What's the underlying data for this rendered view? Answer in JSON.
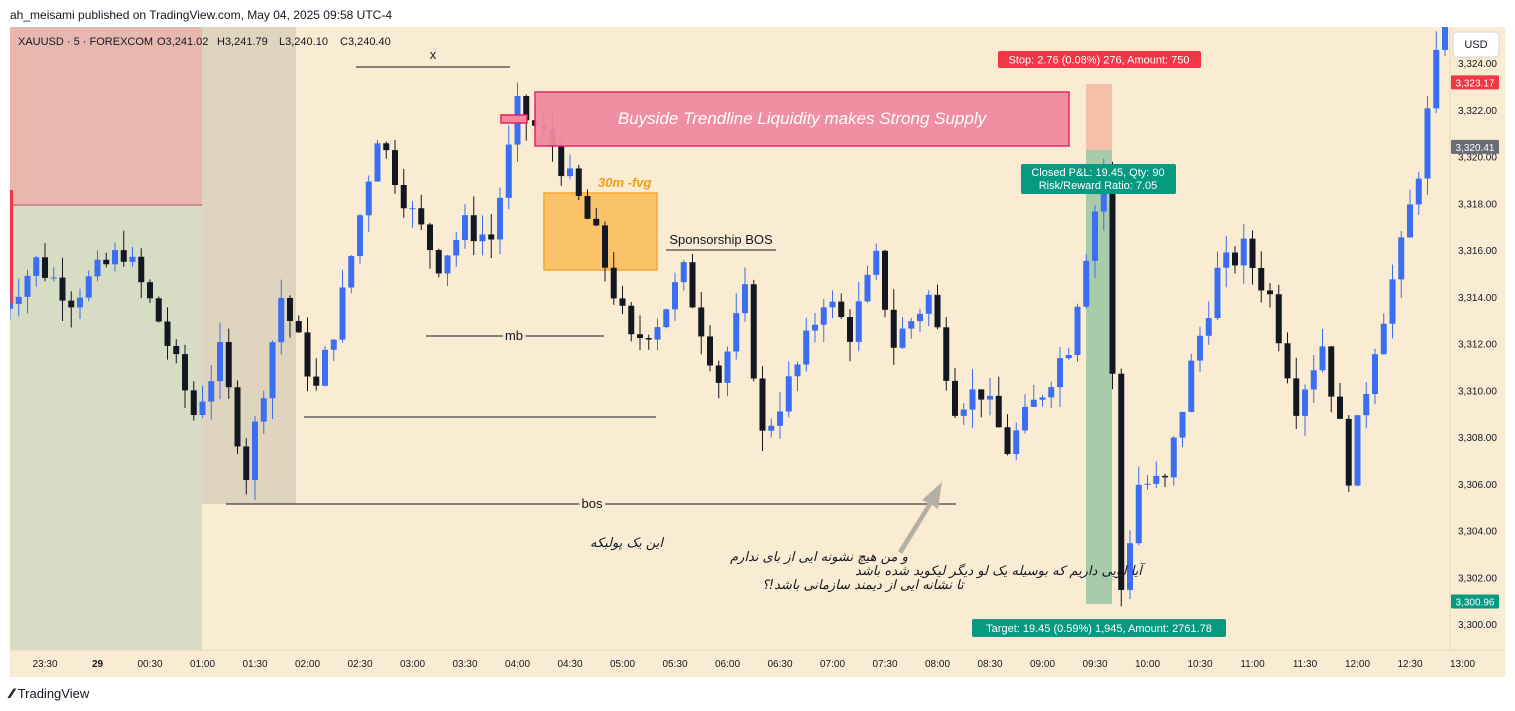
{
  "publisher": "ah_meisami published on TradingView.com, May 04, 2025 09:58 UTC-4",
  "footer": {
    "logo_text": "TradingView",
    "logo_icon": "tradingview-logo-icon"
  },
  "legend": {
    "symbol": "XAUUSD · 5 · FOREXCOM",
    "open": "O3,241.02",
    "high": "H3,241.79",
    "low": "L3,240.10",
    "close": "C3,240.40"
  },
  "currency_button": "USD",
  "colors": {
    "background": "#faecd2",
    "bull": "#3b6ef0",
    "bear": "#131722",
    "supply_zone": "#f08aa0",
    "fvg_zone": "#fbbd59",
    "red_zone": "#e8b8b0",
    "green_zone": "#d7dcc4",
    "gray_zone": "#dfd4be",
    "stop_box": "#f6baa5",
    "target_box": "#93c4a0",
    "stop_label": "#f23645",
    "target_label": "#089981"
  },
  "chart_data": {
    "type": "candlestick",
    "symbol": "XAUUSD",
    "timeframe": "5",
    "ylim": [
      3299,
      3326
    ],
    "y_ticks": [
      3300,
      3302,
      3304,
      3306,
      3308,
      3310,
      3312,
      3314,
      3316,
      3318,
      3320,
      3322,
      3324
    ],
    "y_tick_labels": [
      "3,300.00",
      "3,302.00",
      "3,304.00",
      "3,306.00",
      "3,308.00",
      "3,310.00",
      "3,312.00",
      "3,314.00",
      "3,316.00",
      "3,318.00",
      "3,320.00",
      "3,322.00",
      "3,324.00"
    ],
    "x_tick_labels": [
      "23:30",
      "29",
      "00:30",
      "01:00",
      "01:30",
      "02:00",
      "02:30",
      "03:00",
      "03:30",
      "04:00",
      "04:30",
      "05:00",
      "05:30",
      "06:00",
      "06:30",
      "07:00",
      "07:30",
      "08:00",
      "08:30",
      "09:00",
      "09:30",
      "10:00",
      "10:30",
      "11:00",
      "11:30",
      "12:00",
      "12:30",
      "13:00"
    ],
    "price_tags": [
      {
        "label": "3,323.17",
        "value": 3323.17,
        "color": "#f23645"
      },
      {
        "label": "3,320.41",
        "value": 3320.41,
        "color": "#6a6d78"
      },
      {
        "label": "3,300.96",
        "value": 3300.96,
        "color": "#089981"
      }
    ],
    "grid": false,
    "anchor_points": [
      {
        "time": "23:05",
        "price": 3313.5
      },
      {
        "time": "23:25",
        "price": 3315.5
      },
      {
        "time": "23:45",
        "price": 3314.0
      },
      {
        "time": "00:15",
        "price": 3316.0
      },
      {
        "time": "00:35",
        "price": 3313.0
      },
      {
        "time": "00:55",
        "price": 3309.0
      },
      {
        "time": "01:10",
        "price": 3311.5
      },
      {
        "time": "01:25",
        "price": 3306.5
      },
      {
        "time": "01:45",
        "price": 3314.0
      },
      {
        "time": "02:05",
        "price": 3310.0
      },
      {
        "time": "02:20",
        "price": 3314.0
      },
      {
        "time": "02:40",
        "price": 3321.0
      },
      {
        "time": "03:00",
        "price": 3317.5
      },
      {
        "time": "03:15",
        "price": 3315.5
      },
      {
        "time": "03:30",
        "price": 3317.0
      },
      {
        "time": "03:45",
        "price": 3316.5
      },
      {
        "time": "04:00",
        "price": 3322.0
      },
      {
        "time": "04:20",
        "price": 3320.5
      },
      {
        "time": "04:45",
        "price": 3316.5
      },
      {
        "time": "05:05",
        "price": 3312.0
      },
      {
        "time": "05:20",
        "price": 3313.0
      },
      {
        "time": "05:35",
        "price": 3315.0
      },
      {
        "time": "05:55",
        "price": 3310.5
      },
      {
        "time": "06:10",
        "price": 3314.0
      },
      {
        "time": "06:20",
        "price": 3308.0
      },
      {
        "time": "06:40",
        "price": 3311.0
      },
      {
        "time": "06:55",
        "price": 3314.0
      },
      {
        "time": "07:10",
        "price": 3312.5
      },
      {
        "time": "07:25",
        "price": 3315.5
      },
      {
        "time": "07:35",
        "price": 3312.0
      },
      {
        "time": "07:55",
        "price": 3314.0
      },
      {
        "time": "08:10",
        "price": 3309.5
      },
      {
        "time": "08:25",
        "price": 3310.0
      },
      {
        "time": "08:40",
        "price": 3307.5
      },
      {
        "time": "09:00",
        "price": 3310.0
      },
      {
        "time": "09:15",
        "price": 3312.0
      },
      {
        "time": "09:25",
        "price": 3316.0
      },
      {
        "time": "09:35",
        "price": 3319.5
      },
      {
        "time": "09:45",
        "price": 3301.5
      },
      {
        "time": "09:55",
        "price": 3306.0
      },
      {
        "time": "10:10",
        "price": 3306.0
      },
      {
        "time": "10:25",
        "price": 3311.0
      },
      {
        "time": "10:40",
        "price": 3315.0
      },
      {
        "time": "10:55",
        "price": 3316.0
      },
      {
        "time": "11:10",
        "price": 3314.0
      },
      {
        "time": "11:25",
        "price": 3309.5
      },
      {
        "time": "11:40",
        "price": 3312.0
      },
      {
        "time": "11:55",
        "price": 3306.5
      },
      {
        "time": "12:10",
        "price": 3312.0
      },
      {
        "time": "12:25",
        "price": 3316.0
      },
      {
        "time": "12:35",
        "price": 3319.5
      },
      {
        "time": "12:45",
        "price": 3324.0
      },
      {
        "time": "12:50",
        "price": 3326.0
      }
    ]
  },
  "annotations": {
    "supply_label": "Buyside Trendline Liquidity makes Strong Supply",
    "fvg_label": "30m -fvg",
    "sponsorship_label": "Sponsorship BOS",
    "x_label": "x",
    "mb_label": "mb",
    "bos_label": "bos",
    "persian_note": [
      "این یک پولبکه",
      "و من هیچ نشونه ایی از بای ندارم",
      "آیا لویی داریم که بوسیله یک لو دیگر لیکوید شده باشد",
      "تا نشانه ایی از دیمند سازمانی باشد!؟"
    ],
    "stop_label": "Stop: 2.76 (0.08%) 276, Amount: 750",
    "target_label": "Target: 19.45 (0.59%) 1,945, Amount: 2761.78",
    "pnl_line1": "Closed P&L: 19.45, Qty: 90",
    "pnl_line2": "Risk/Reward Ratio: 7.05"
  }
}
